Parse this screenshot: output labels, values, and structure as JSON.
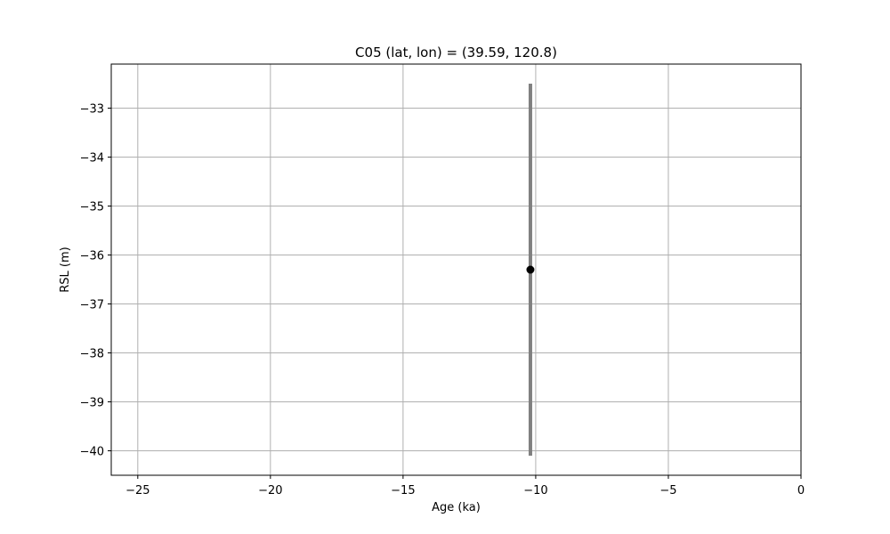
{
  "chart_data": {
    "type": "scatter",
    "title": "C05 (lat, lon) = (39.59, 120.8)",
    "xlabel": "Age (ka)",
    "ylabel": "RSL (m)",
    "xlim": [
      -26,
      0
    ],
    "ylim": [
      -40.5,
      -32.1
    ],
    "xticks": [
      -25,
      -20,
      -15,
      -10,
      -5,
      0
    ],
    "xtick_labels": [
      "−25",
      "−20",
      "−15",
      "−10",
      "−5",
      "0"
    ],
    "yticks": [
      -33,
      -34,
      -35,
      -36,
      -37,
      -38,
      -39,
      -40
    ],
    "ytick_labels": [
      "−33",
      "−34",
      "−35",
      "−36",
      "−37",
      "−38",
      "−39",
      "−40"
    ],
    "grid": true,
    "points": [
      {
        "x": -10.2,
        "y": -36.3,
        "y_lower": -40.1,
        "y_upper": -32.5
      }
    ],
    "colors": {
      "point": "#000000",
      "errorbar": "#808080",
      "grid": "#b0b0b0",
      "axes": "#000000"
    }
  }
}
